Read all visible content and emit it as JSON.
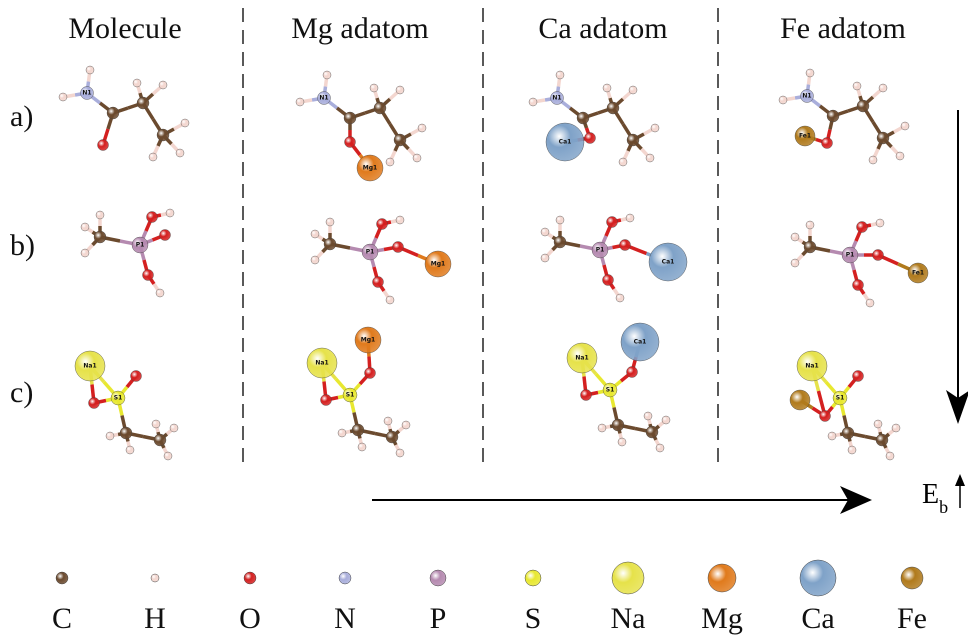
{
  "headers": [
    "Molecule",
    "Mg adatom",
    "Ca adatom",
    "Fe adatom"
  ],
  "rows": [
    "a)",
    "b)",
    "c)"
  ],
  "structures": [
    [
      [
        "N1"
      ],
      [
        "N1",
        "Mg1"
      ],
      [
        "N1",
        "Ca1"
      ],
      [
        "N1",
        "Fe1"
      ]
    ],
    [
      [
        "P1"
      ],
      [
        "P1",
        "Mg1"
      ],
      [
        "P1",
        "Ca1"
      ],
      [
        "P1",
        "Fe1"
      ]
    ],
    [
      [
        "Na1",
        "S1"
      ],
      [
        "Na1",
        "S1",
        "Mg1"
      ],
      [
        "Na1",
        "S1",
        "Ca1"
      ],
      [
        "Na1",
        "S1"
      ]
    ]
  ],
  "energy_label": {
    "symbol": "E",
    "subscript": "b"
  },
  "legend": [
    "C",
    "H",
    "O",
    "N",
    "P",
    "S",
    "Na",
    "Mg",
    "Ca",
    "Fe"
  ]
}
